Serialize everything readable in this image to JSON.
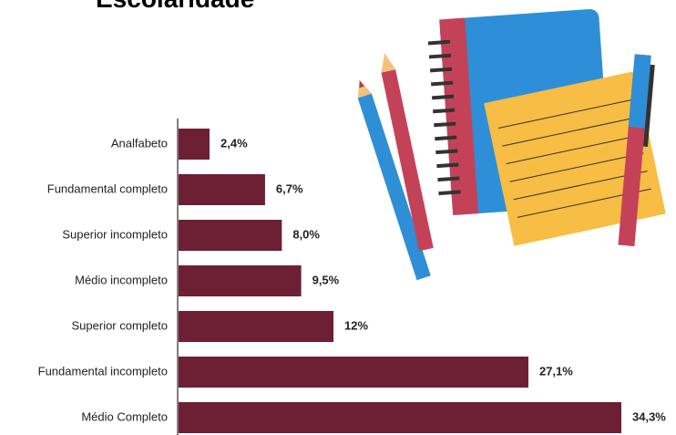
{
  "chart_data": {
    "type": "bar",
    "orientation": "horizontal",
    "title": "Escolaridade",
    "categories": [
      "Analfabeto",
      "Fundamental completo",
      "Superior incompleto",
      "Médio incompleto",
      "Superior completo",
      "Fundamental incompleto",
      "Médio Completo"
    ],
    "values": [
      2.4,
      6.7,
      8.0,
      9.5,
      12,
      27.1,
      34.3
    ],
    "value_labels": [
      "2,4%",
      "6,7%",
      "8,0%",
      "9,5%",
      "12%",
      "27,1%",
      "34,3%"
    ],
    "color": "#6d1f33"
  }
}
